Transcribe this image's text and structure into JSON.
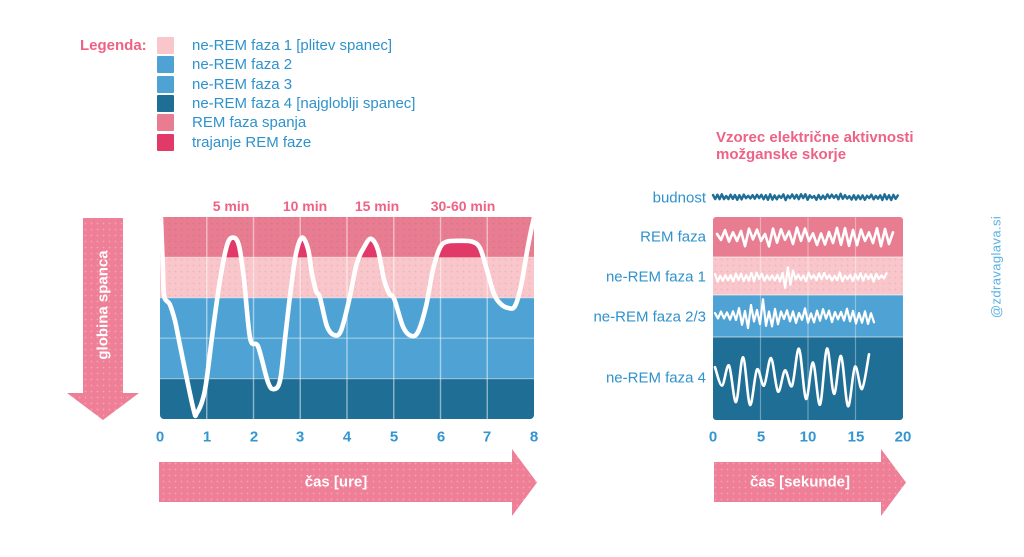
{
  "watermark": {
    "text": "@zdravaglava.si",
    "color": "#5cb2e2"
  },
  "colors": {
    "rose": "#e87d92",
    "crimson": "#e23a68",
    "pink": "#f9c6cb",
    "light_blue": "#4fa3d4",
    "dark_blue": "#1f6e96",
    "arrow_pink": "#ee7f97",
    "text_pink": "#ee6285",
    "text_blue": "#3496d0",
    "curve_white": "#ffffff"
  },
  "legend": {
    "title": "Legenda:",
    "items": [
      {
        "label": "ne-REM faza 1 [plitev spanec]",
        "color": "#f9c6cb",
        "dotted": true
      },
      {
        "label": "ne-REM faza 2",
        "color": "#4fa3d4",
        "dotted": false
      },
      {
        "label": "ne-REM faza 3",
        "color": "#4fa3d4",
        "dotted": false
      },
      {
        "label": "ne-REM faza 4 [najgloblji spanec]",
        "color": "#1f6e96",
        "dotted": false
      },
      {
        "label": "REM faza spanja",
        "color": "#e87d92",
        "dotted": false
      },
      {
        "label": "trajanje REM faze",
        "color": "#e23a68",
        "dotted": false
      }
    ]
  },
  "chart_data": [
    {
      "type": "area",
      "name": "hipnogram-globina-spanca",
      "x_label": "čas [ure]",
      "y_label": "globina spanca",
      "x_ticks": [
        "0",
        "1",
        "2",
        "3",
        "4",
        "5",
        "6",
        "7",
        "8"
      ],
      "x_range": [
        0,
        8
      ],
      "depth_levels": 5,
      "bands": [
        {
          "name": "REM faza spanja",
          "color": "#e87d92",
          "dotted": true
        },
        {
          "name": "ne-REM faza 1",
          "color": "#f9c6cb",
          "dotted": true
        },
        {
          "name": "ne-REM faza 2",
          "color": "#4fa3d4",
          "dotted": false
        },
        {
          "name": "ne-REM faza 3",
          "color": "#4fa3d4",
          "dotted": false
        },
        {
          "name": "ne-REM faza 4",
          "color": "#1f6e96",
          "dotted": false
        }
      ],
      "annotations": [
        {
          "label": "5 min",
          "x_hour": 1.55
        },
        {
          "label": "10 min",
          "x_hour": 3.1
        },
        {
          "label": "15 min",
          "x_hour": 4.64
        },
        {
          "label": "30-60 min",
          "x_hour": 6.48
        }
      ],
      "rem_fill_color": "#e23a68",
      "curve_color": "#ffffff",
      "curve": [
        [
          0.02,
          0.0
        ],
        [
          0.06,
          1.2
        ],
        [
          0.09,
          1.96
        ],
        [
          0.21,
          2.16
        ],
        [
          0.32,
          2.57
        ],
        [
          0.43,
          3.19
        ],
        [
          0.71,
          4.73
        ],
        [
          0.79,
          4.85
        ],
        [
          0.96,
          4.29
        ],
        [
          1.13,
          2.82
        ],
        [
          1.28,
          1.59
        ],
        [
          1.43,
          0.71
        ],
        [
          1.56,
          0.51
        ],
        [
          1.69,
          0.71
        ],
        [
          1.8,
          1.59
        ],
        [
          1.93,
          3.01
        ],
        [
          2.1,
          3.21
        ],
        [
          2.31,
          4.09
        ],
        [
          2.44,
          4.26
        ],
        [
          2.57,
          4.04
        ],
        [
          2.67,
          3.06
        ],
        [
          2.78,
          1.96
        ],
        [
          2.91,
          0.91
        ],
        [
          3.04,
          0.51
        ],
        [
          3.17,
          0.81
        ],
        [
          3.25,
          1.4
        ],
        [
          3.34,
          1.84
        ],
        [
          3.42,
          1.99
        ],
        [
          3.57,
          2.7
        ],
        [
          3.72,
          2.92
        ],
        [
          3.87,
          2.82
        ],
        [
          4.04,
          2.08
        ],
        [
          4.21,
          1.15
        ],
        [
          4.36,
          0.76
        ],
        [
          4.51,
          0.54
        ],
        [
          4.66,
          0.81
        ],
        [
          4.79,
          1.54
        ],
        [
          4.9,
          1.89
        ],
        [
          5.01,
          2.03
        ],
        [
          5.2,
          2.72
        ],
        [
          5.37,
          2.94
        ],
        [
          5.52,
          2.84
        ],
        [
          5.69,
          2.21
        ],
        [
          5.84,
          1.3
        ],
        [
          5.99,
          0.76
        ],
        [
          6.14,
          0.61
        ],
        [
          6.42,
          0.59
        ],
        [
          6.67,
          0.61
        ],
        [
          6.84,
          0.76
        ],
        [
          6.99,
          1.3
        ],
        [
          7.14,
          1.89
        ],
        [
          7.27,
          2.13
        ],
        [
          7.44,
          2.25
        ],
        [
          7.59,
          2.21
        ],
        [
          7.72,
          1.72
        ],
        [
          7.85,
          0.86
        ],
        [
          7.94,
          0.32
        ],
        [
          8.0,
          0.02
        ]
      ]
    },
    {
      "type": "line",
      "name": "vzorec-eeg-aktivnosti",
      "title": "Vzorec električne aktivnosti možganske skorje",
      "title_line1": "Vzorec električne aktivnosti",
      "title_line2": "možganske skorje",
      "x_label": "čas [sekunde]",
      "x_ticks": [
        "0",
        "5",
        "10",
        "15",
        "20"
      ],
      "x_range": [
        0,
        20
      ],
      "rows": [
        {
          "label": "budnost",
          "band_color": null,
          "dotted": false,
          "trace_color": "#1f6e96",
          "wave": {
            "seed": 11,
            "step": 2.2,
            "amp": 3.2,
            "style": "zigzag",
            "width": 2.4
          }
        },
        {
          "label": "REM faza",
          "band_color": "#e87d92",
          "dotted": false,
          "trace_color": "#ffffff",
          "wave": {
            "seed": 23,
            "step": 4,
            "amp": 9.5,
            "style": "zigzag",
            "width": 2.6,
            "clamp": 15
          }
        },
        {
          "label": "ne-REM faza 1",
          "band_color": "#f9c6cb",
          "dotted": true,
          "trace_color": "#ffffff",
          "wave": {
            "seed": 37,
            "step": 2.6,
            "amp": 4.6,
            "style": "zigzag",
            "width": 2.2,
            "spikes": [
              {
                "t": 0.42,
                "gain": 2.6,
                "w": 0.018
              }
            ],
            "clamp": 17
          }
        },
        {
          "label": "ne-REM faza 2/3",
          "band_color": "#4fa3d4",
          "dotted": false,
          "trace_color": "#ffffff",
          "wave": {
            "seed": 51,
            "step": 3,
            "amp": 8,
            "style": "zigzag",
            "width": 2.2,
            "spikes": [
              {
                "t": 0.28,
                "gain": 1.5,
                "w": 0.05
              }
            ],
            "clamp": 19
          }
        },
        {
          "label": "ne-REM faza 4",
          "band_color": "#1f6e96",
          "dotted": false,
          "trace_color": "#ffffff",
          "wave": {
            "seed": 66,
            "step": 7,
            "amp": 30,
            "style": "smooth",
            "width": 2.6,
            "clamp": 37
          }
        }
      ]
    }
  ]
}
